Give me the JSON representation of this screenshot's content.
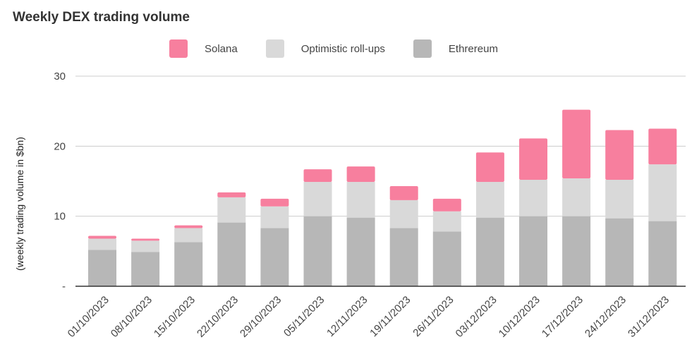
{
  "chart_data": {
    "type": "bar",
    "stacked": true,
    "title": "Weekly DEX trading volume",
    "xlabel": "",
    "ylabel": "(weekly trading volume in $bn)",
    "ylim": [
      0,
      30
    ],
    "yticks": [
      {
        "value": 0,
        "label": "-"
      },
      {
        "value": 10,
        "label": "10"
      },
      {
        "value": 20,
        "label": "20"
      },
      {
        "value": 30,
        "label": "30"
      }
    ],
    "grid": true,
    "legend_position": "top",
    "categories": [
      "01/10/2023",
      "08/10/2023",
      "15/10/2023",
      "22/10/2023",
      "29/10/2023",
      "05/11/2023",
      "12/11/2023",
      "19/11/2023",
      "26/11/2023",
      "03/12/2023",
      "10/12/2023",
      "17/12/2023",
      "24/12/2023",
      "31/12/2023"
    ],
    "series": [
      {
        "name": "Ethrereum",
        "color": "#b7b7b7",
        "values": [
          5.2,
          4.9,
          6.3,
          9.1,
          8.3,
          10.0,
          9.8,
          8.3,
          7.8,
          9.8,
          10.0,
          10.0,
          9.7,
          9.3
        ]
      },
      {
        "name": "Optimistic roll-ups",
        "color": "#d9d9d9",
        "values": [
          1.6,
          1.6,
          2.0,
          3.6,
          3.1,
          4.9,
          5.1,
          4.0,
          2.9,
          5.1,
          5.2,
          5.4,
          5.5,
          8.1
        ]
      },
      {
        "name": "Solana",
        "color": "#f77f9e",
        "values": [
          0.4,
          0.3,
          0.4,
          0.7,
          1.1,
          1.8,
          2.2,
          2.0,
          1.8,
          4.2,
          5.9,
          9.8,
          7.1,
          5.1
        ]
      }
    ]
  }
}
